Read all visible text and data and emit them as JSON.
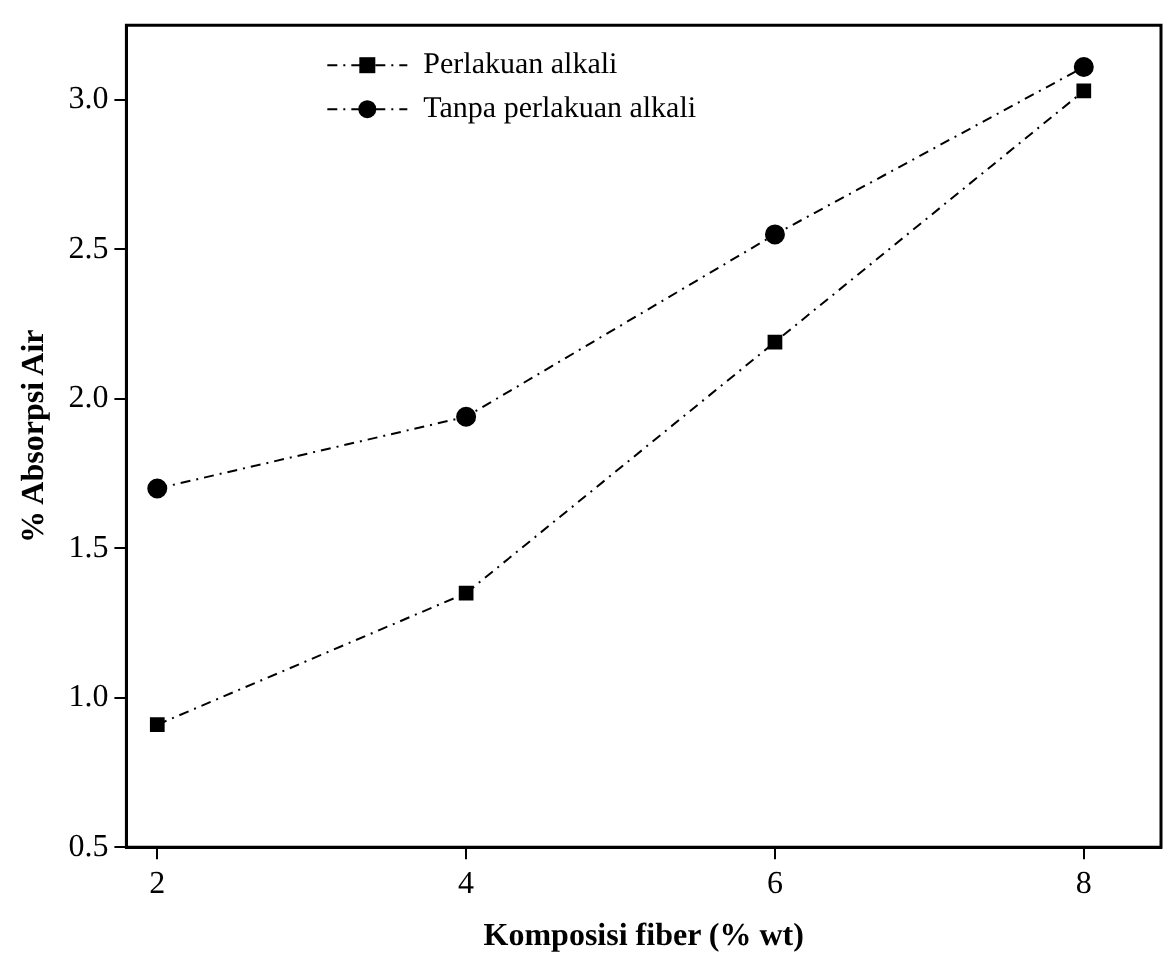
{
  "chart_data": {
    "type": "line",
    "xlabel": "Komposisi fiber (% wt)",
    "ylabel": "% Absorpsi Air",
    "x": [
      2,
      4,
      6,
      8
    ],
    "series": [
      {
        "name": "Perlakuan alkali",
        "color": "#000000",
        "marker": "square",
        "values": [
          0.91,
          1.35,
          2.19,
          3.03
        ]
      },
      {
        "name": "Tanpa perlakuan alkali",
        "color": "#000000",
        "marker": "circle",
        "values": [
          1.7,
          1.94,
          2.55,
          3.11
        ]
      }
    ],
    "xlim": [
      1.8,
      8.5
    ],
    "xticks": [
      2,
      4,
      6,
      8
    ],
    "ylim": [
      0.5,
      3.25
    ],
    "yticks": [
      0.5,
      {
        "value": 1,
        "label": "1.0"
      },
      1.5,
      {
        "value": 2,
        "label": "2.0"
      },
      2.5,
      {
        "value": 3,
        "label": "3.0"
      }
    ],
    "grid": false,
    "legend": "top",
    "line_style": "dashed"
  }
}
